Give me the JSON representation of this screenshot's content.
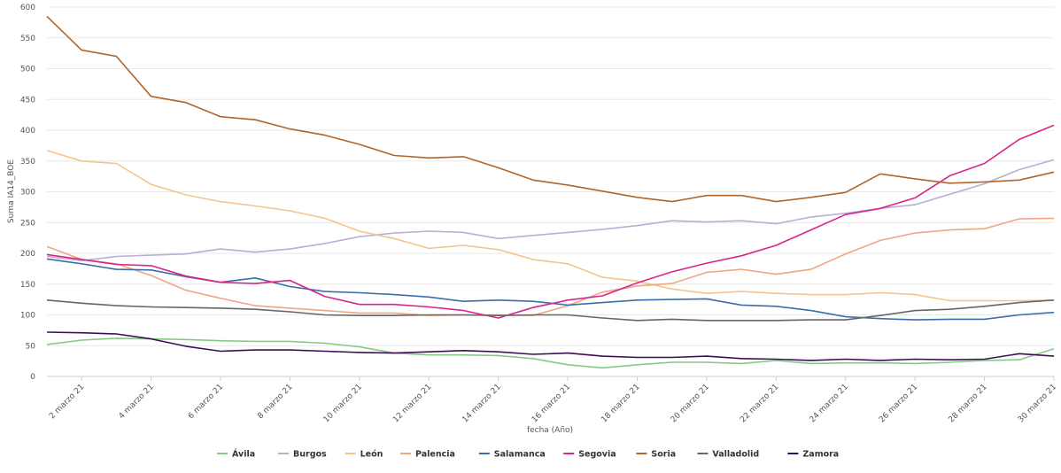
{
  "chart_data": {
    "type": "line",
    "title": "",
    "xlabel": "fecha (Año)",
    "ylabel": "Suma IA14_BOE",
    "ylim": [
      0,
      600
    ],
    "yticks": [
      "0",
      "50",
      "100",
      "150",
      "200",
      "250",
      "300",
      "350",
      "400",
      "450",
      "500",
      "550",
      "600"
    ],
    "x": [
      1,
      2,
      3,
      4,
      5,
      6,
      7,
      8,
      9,
      10,
      11,
      12,
      13,
      14,
      15,
      16,
      17,
      18,
      19,
      20,
      21,
      22,
      23,
      24,
      25,
      26,
      27,
      28,
      29,
      30
    ],
    "xtick_labels": [
      "2 marzo 21",
      "4 marzo 21",
      "6 marzo 21",
      "8 marzo 21",
      "10 marzo 21",
      "12 marzo 21",
      "14 marzo 21",
      "16 marzo 21",
      "18 marzo 21",
      "20 marzo 21",
      "22 marzo 21",
      "24 marzo 21",
      "26 marzo 21",
      "28 marzo 21",
      "30 marzo 21"
    ],
    "xtick_days": [
      2,
      4,
      6,
      8,
      10,
      12,
      14,
      16,
      18,
      20,
      22,
      24,
      26,
      28,
      30
    ],
    "grid": true,
    "legend_position": "bottom",
    "series": [
      {
        "name": "Ávila",
        "color": "#86c986",
        "values": [
          52,
          59,
          62,
          61,
          60,
          58,
          57,
          57,
          54,
          48,
          38,
          35,
          35,
          34,
          29,
          19,
          14,
          19,
          23,
          23,
          21,
          26,
          21,
          22,
          22,
          21,
          23,
          26,
          27,
          45
        ]
      },
      {
        "name": "Burgos",
        "color": "#b9aed3",
        "values": [
          195,
          188,
          195,
          197,
          199,
          207,
          202,
          207,
          216,
          227,
          233,
          236,
          234,
          224,
          229,
          234,
          239,
          245,
          253,
          251,
          253,
          248,
          259,
          265,
          273,
          279,
          296,
          313,
          336,
          352
        ]
      },
      {
        "name": "León",
        "color": "#f3c48f",
        "values": [
          367,
          350,
          346,
          312,
          295,
          284,
          277,
          269,
          257,
          236,
          224,
          208,
          213,
          206,
          190,
          183,
          161,
          155,
          142,
          135,
          138,
          135,
          133,
          133,
          136,
          133,
          123,
          123,
          123,
          124
        ]
      },
      {
        "name": "Palencia",
        "color": "#eda783",
        "values": [
          211,
          190,
          183,
          164,
          140,
          127,
          115,
          111,
          107,
          103,
          103,
          99,
          100,
          100,
          99,
          115,
          137,
          147,
          151,
          169,
          174,
          166,
          174,
          199,
          221,
          233,
          238,
          240,
          256,
          257
        ]
      },
      {
        "name": "Salamanca",
        "color": "#3b6ea8",
        "values": [
          191,
          183,
          174,
          173,
          162,
          153,
          160,
          146,
          138,
          136,
          133,
          129,
          122,
          124,
          122,
          116,
          120,
          124,
          125,
          126,
          116,
          114,
          107,
          97,
          94,
          92,
          93,
          93,
          100,
          104
        ]
      },
      {
        "name": "Segovia",
        "color": "#d6268a",
        "values": [
          198,
          190,
          182,
          180,
          163,
          153,
          151,
          156,
          130,
          117,
          117,
          113,
          107,
          95,
          112,
          124,
          131,
          152,
          170,
          184,
          196,
          213,
          238,
          263,
          273,
          290,
          326,
          346,
          385,
          408
        ]
      },
      {
        "name": "Soria",
        "color": "#b0652a",
        "values": [
          585,
          530,
          520,
          455,
          445,
          422,
          417,
          402,
          392,
          377,
          359,
          355,
          357,
          339,
          319,
          311,
          301,
          291,
          284,
          294,
          294,
          284,
          291,
          299,
          329,
          321,
          314,
          316,
          319,
          332
        ]
      },
      {
        "name": "Valladolid",
        "color": "#666666",
        "values": [
          124,
          119,
          115,
          113,
          112,
          111,
          109,
          105,
          100,
          99,
          99,
          100,
          100,
          99,
          100,
          100,
          95,
          91,
          93,
          91,
          91,
          91,
          92,
          92,
          99,
          107,
          109,
          114,
          120,
          124
        ]
      },
      {
        "name": "Zamora",
        "color": "#3d0f55",
        "values": [
          72,
          71,
          69,
          61,
          49,
          41,
          43,
          43,
          41,
          39,
          38,
          40,
          42,
          40,
          36,
          38,
          33,
          31,
          31,
          33,
          29,
          28,
          26,
          28,
          26,
          28,
          27,
          28,
          37,
          33
        ]
      }
    ]
  }
}
